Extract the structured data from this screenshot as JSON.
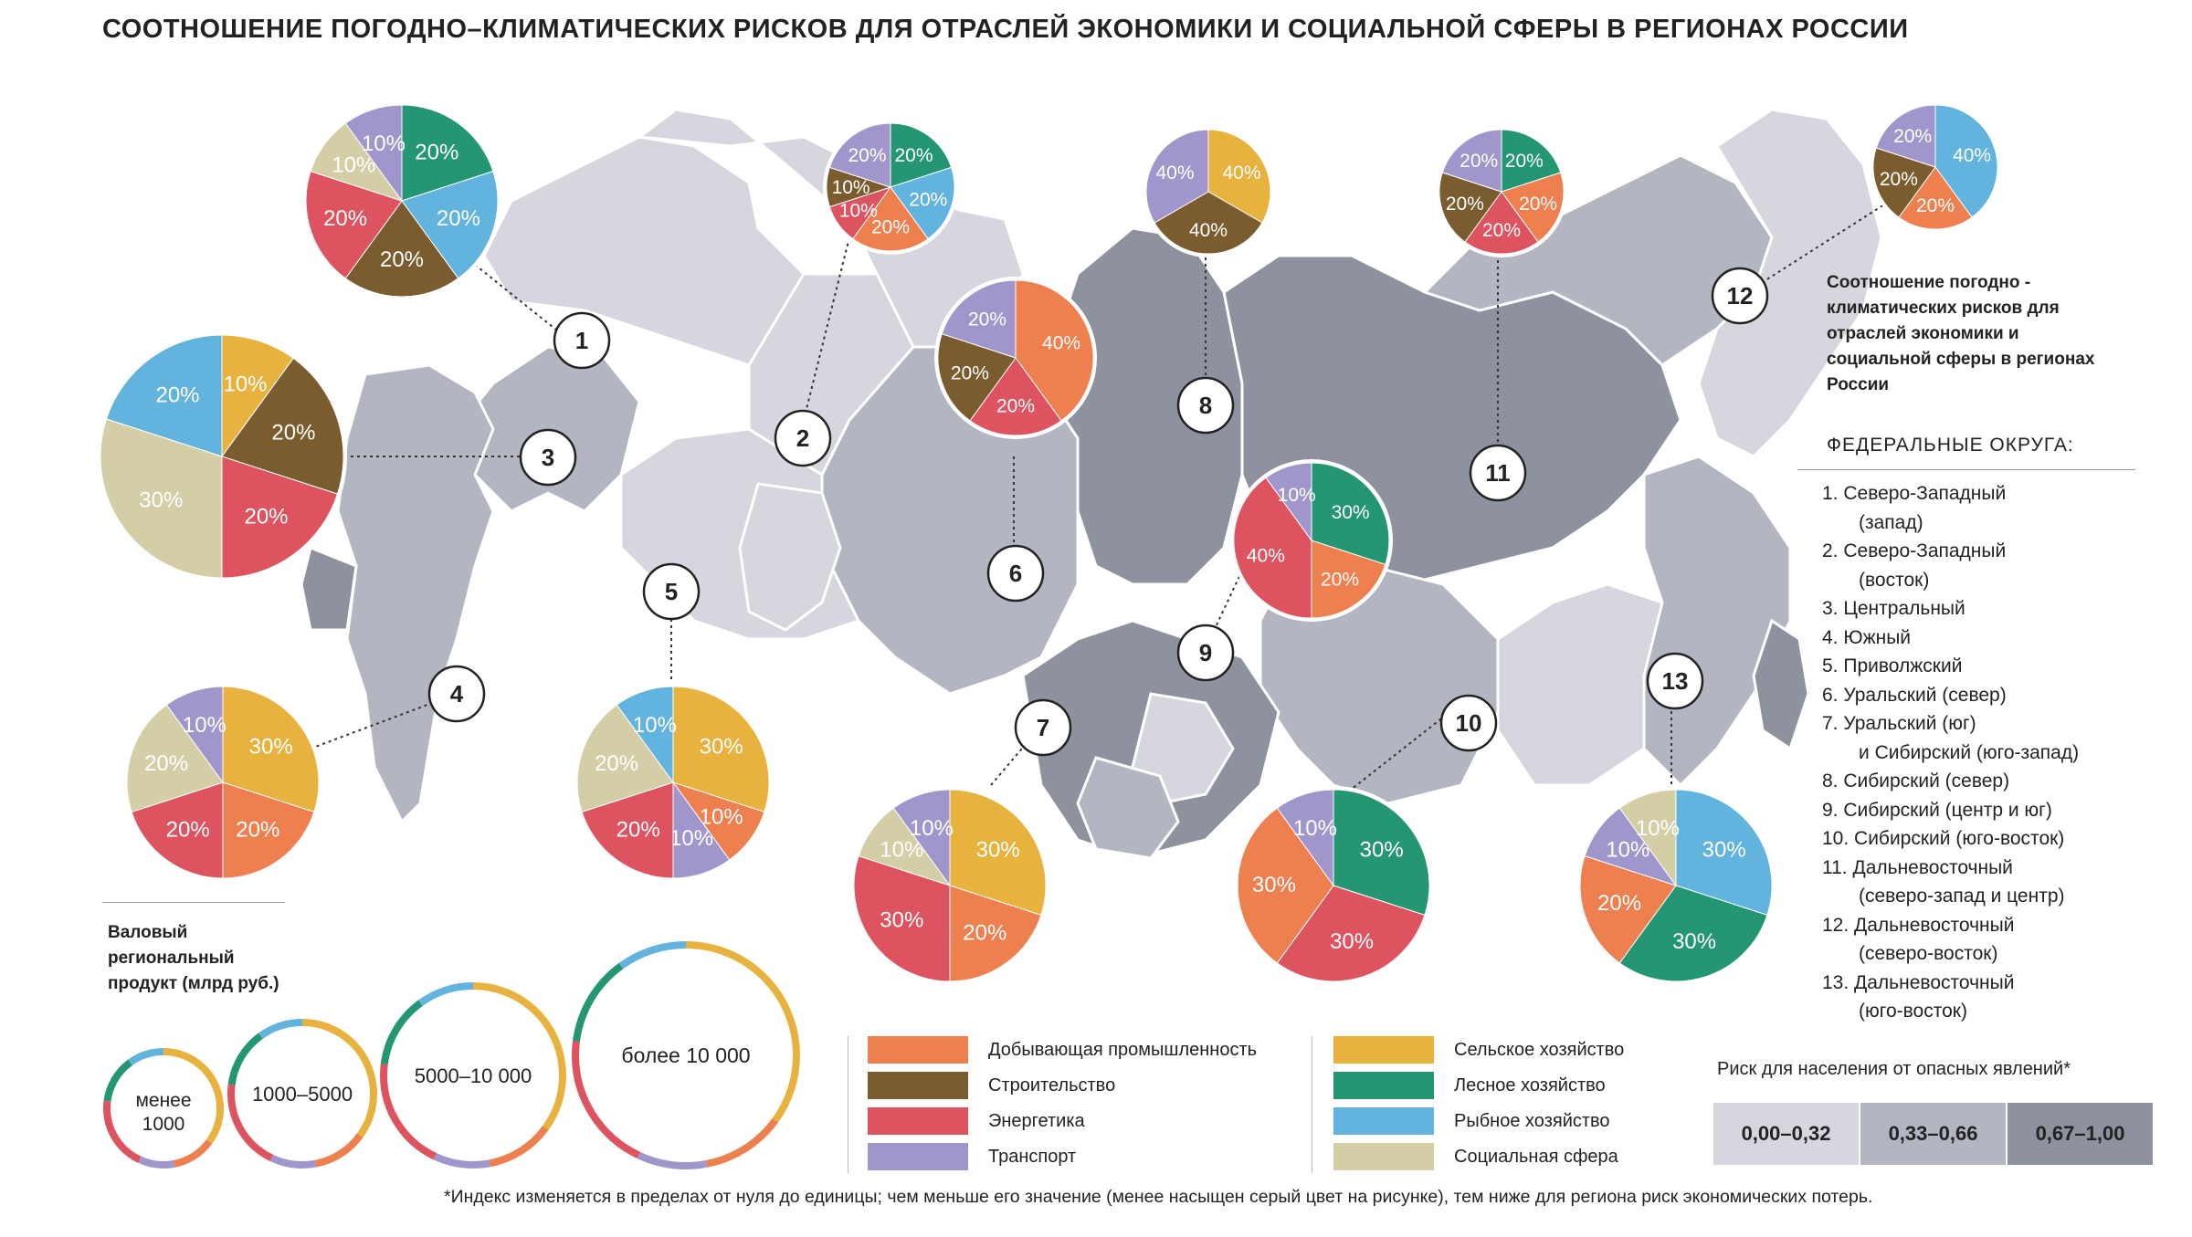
{
  "title": "СООТНОШЕНИЕ ПОГОДНО–КЛИМАТИЧЕСКИХ РИСКОВ ДЛЯ ОТРАСЛЕЙ ЭКОНОМИКИ И СОЦИАЛЬНОЙ СФЕРЫ В РЕГИОНАХ РОССИИ",
  "side_description": "Соотношение погодно - климатических рисков для отраслей экономики и социальной сферы в регионах России",
  "districts_heading": "ФЕДЕРАЛЬНЫЕ ОКРУГА:",
  "districts": [
    [
      "1. Северо-Западный",
      "(запад)"
    ],
    [
      "2. Северо-Западный",
      "(восток)"
    ],
    [
      "3. Центральный"
    ],
    [
      "4. Южный"
    ],
    [
      "5. Приволжский"
    ],
    [
      "6. Уральский (север)"
    ],
    [
      "7. Уральский (юг)",
      "и Сибирский (юго-запад)"
    ],
    [
      "8. Сибирский (север)"
    ],
    [
      "9. Сибирский (центр и юг)"
    ],
    [
      "10. Сибирский (юго-восток)"
    ],
    [
      "11. Дальневосточный",
      "(северо-запад и центр)"
    ],
    [
      "12. Дальневосточный",
      "(северо-восток)"
    ],
    [
      "13. Дальневосточный",
      "(юго-восток)"
    ]
  ],
  "grp": {
    "title": "Валовый региональный продукт (млрд руб.)",
    "classes": [
      "менее 1000",
      "1000–5000",
      "5000–10 000",
      "более 10 000"
    ]
  },
  "legend": {
    "items": [
      {
        "label": "Добывающая промышленность",
        "color": "#EE7F4F"
      },
      {
        "label": "Строительство",
        "color": "#7A5C2E"
      },
      {
        "label": "Энергетика",
        "color": "#DD5460"
      },
      {
        "label": "Транспорт",
        "color": "#A196CC"
      },
      {
        "label": "Сельское хозяйство",
        "color": "#E8B23F"
      },
      {
        "label": "Лесное хозяйство",
        "color": "#249673"
      },
      {
        "label": "Рыбное хозяйство",
        "color": "#62B3DE"
      },
      {
        "label": "Социальная сфера",
        "color": "#D3CEA6"
      }
    ]
  },
  "risk": {
    "title": "Риск для населения от опасных явлений*",
    "classes": [
      {
        "label": "0,00–0,32",
        "color": "#D6D6DE"
      },
      {
        "label": "0,33–0,66",
        "color": "#B3B5C1"
      },
      {
        "label": "0,67–1,00",
        "color": "#8E919E"
      }
    ]
  },
  "footnote": "*Индекс изменяется в пределах от нуля до единицы; чем меньше его значение (менее насыщен серый цвет на рисунке), тем ниже для региона риск экономических потерь.",
  "chart_data": {
    "type": "pie",
    "pies": [
      {
        "district": "1",
        "sectors": [
          {
            "sector": "Лесное хозяйство",
            "value": 20,
            "label": "20%"
          },
          {
            "sector": "Рыбное хозяйство",
            "value": 20,
            "label": "20%"
          },
          {
            "sector": "Строительство",
            "value": 20,
            "label": "20%"
          },
          {
            "sector": "Энергетика",
            "value": 20,
            "label": "20%"
          },
          {
            "sector": "Социальная сфера",
            "value": 10,
            "label": "10%"
          },
          {
            "sector": "Транспорт",
            "value": 10,
            "label": "10%"
          }
        ]
      },
      {
        "district": "2",
        "sectors": [
          {
            "sector": "Лесное хозяйство",
            "value": 20,
            "label": "20%"
          },
          {
            "sector": "Рыбное хозяйство",
            "value": 20,
            "label": "20%"
          },
          {
            "sector": "Добывающая промышленность",
            "value": 20,
            "label": "20%"
          },
          {
            "sector": "Энергетика",
            "value": 10,
            "label": "10%"
          },
          {
            "sector": "Строительство",
            "value": 10,
            "label": "10%"
          },
          {
            "sector": "Транспорт",
            "value": 20,
            "label": "20%"
          }
        ]
      },
      {
        "district": "3",
        "sectors": [
          {
            "sector": "Сельское хозяйство",
            "value": 10,
            "label": "10%"
          },
          {
            "sector": "Строительство",
            "value": 20,
            "label": "20%"
          },
          {
            "sector": "Энергетика",
            "value": 20,
            "label": "20%"
          },
          {
            "sector": "Социальная сфера",
            "value": 30,
            "label": "30%"
          },
          {
            "sector": "Рыбное хозяйство",
            "value": 20,
            "label": "20%"
          }
        ]
      },
      {
        "district": "4",
        "sectors": [
          {
            "sector": "Сельское хозяйство",
            "value": 30,
            "label": "30%"
          },
          {
            "sector": "Добывающая промышленность",
            "value": 20,
            "label": "20%"
          },
          {
            "sector": "Энергетика",
            "value": 20,
            "label": "20%"
          },
          {
            "sector": "Социальная сфера",
            "value": 20,
            "label": "20%"
          },
          {
            "sector": "Транспорт",
            "value": 10,
            "label": "10%"
          }
        ]
      },
      {
        "district": "5",
        "sectors": [
          {
            "sector": "Сельское хозяйство",
            "value": 30,
            "label": "30%"
          },
          {
            "sector": "Добывающая промышленность",
            "value": 10,
            "label": "10%"
          },
          {
            "sector": "Транспорт",
            "value": 10,
            "label": "10%"
          },
          {
            "sector": "Энергетика",
            "value": 20,
            "label": "20%"
          },
          {
            "sector": "Социальная сфера",
            "value": 20,
            "label": "20%"
          },
          {
            "sector": "Рыбное хозяйство",
            "value": 10,
            "label": "10%"
          }
        ]
      },
      {
        "district": "6",
        "sectors": [
          {
            "sector": "Добывающая промышленность",
            "value": 40,
            "label": "40%"
          },
          {
            "sector": "Энергетика",
            "value": 20,
            "label": "20%"
          },
          {
            "sector": "Строительство",
            "value": 20,
            "label": "20%"
          },
          {
            "sector": "Транспорт",
            "value": 20,
            "label": "20%"
          }
        ]
      },
      {
        "district": "7",
        "sectors": [
          {
            "sector": "Сельское хозяйство",
            "value": 30,
            "label": "30%"
          },
          {
            "sector": "Добывающая промышленность",
            "value": 20,
            "label": "20%"
          },
          {
            "sector": "Энергетика",
            "value": 30,
            "label": "30%"
          },
          {
            "sector": "Социальная сфера",
            "value": 10,
            "label": "10%"
          },
          {
            "sector": "Транспорт",
            "value": 10,
            "label": "10%"
          }
        ]
      },
      {
        "district": "8",
        "sectors": [
          {
            "sector": "Сельское хозяйство",
            "value": 40,
            "label": "40%"
          },
          {
            "sector": "Строительство",
            "value": 40,
            "label": "40%"
          },
          {
            "sector": "Транспорт",
            "value": 40,
            "label": "40%"
          }
        ]
      },
      {
        "district": "9",
        "sectors": [
          {
            "sector": "Лесное хозяйство",
            "value": 30,
            "label": "30%"
          },
          {
            "sector": "Добывающая промышленность",
            "value": 20,
            "label": "20%"
          },
          {
            "sector": "Энергетика",
            "value": 40,
            "label": "40%"
          },
          {
            "sector": "Транспорт",
            "value": 10,
            "label": "10%"
          }
        ]
      },
      {
        "district": "10",
        "sectors": [
          {
            "sector": "Лесное хозяйство",
            "value": 30,
            "label": "30%"
          },
          {
            "sector": "Энергетика",
            "value": 30,
            "label": "30%"
          },
          {
            "sector": "Добывающая промышленность",
            "value": 30,
            "label": "30%"
          },
          {
            "sector": "Транспорт",
            "value": 10,
            "label": "10%"
          }
        ]
      },
      {
        "district": "11",
        "sectors": [
          {
            "sector": "Лесное хозяйство",
            "value": 20,
            "label": "20%"
          },
          {
            "sector": "Добывающая промышленность",
            "value": 20,
            "label": "20%"
          },
          {
            "sector": "Энергетика",
            "value": 20,
            "label": "20%"
          },
          {
            "sector": "Строительство",
            "value": 20,
            "label": "20%"
          },
          {
            "sector": "Транспорт",
            "value": 20,
            "label": "20%"
          }
        ]
      },
      {
        "district": "12",
        "sectors": [
          {
            "sector": "Рыбное хозяйство",
            "value": 40,
            "label": "40%"
          },
          {
            "sector": "Добывающая промышленность",
            "value": 20,
            "label": "20%"
          },
          {
            "sector": "Строительство",
            "value": 20,
            "label": "20%"
          },
          {
            "sector": "Транспорт",
            "value": 20,
            "label": "20%"
          }
        ]
      },
      {
        "district": "13",
        "sectors": [
          {
            "sector": "Рыбное хозяйство",
            "value": 30,
            "label": "30%"
          },
          {
            "sector": "Лесное хозяйство",
            "value": 30,
            "label": "30%"
          },
          {
            "sector": "Добывающая промышленность",
            "value": 20,
            "label": "20%"
          },
          {
            "sector": "Транспорт",
            "value": 10,
            "label": "10%"
          },
          {
            "sector": "Социальная сфера",
            "value": 10,
            "label": "10%"
          }
        ]
      }
    ]
  }
}
